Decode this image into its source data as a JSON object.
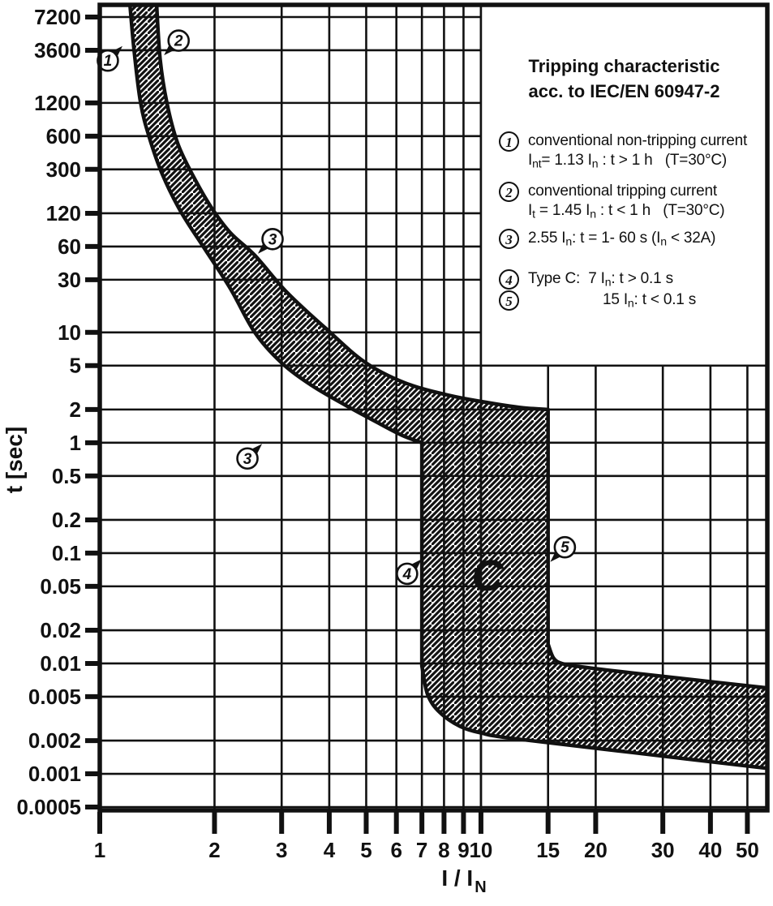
{
  "page": {
    "background": "#ffffff",
    "ink_color": "#111111"
  },
  "legend": {
    "title_line1": "Tripping characteristic",
    "title_line2": "acc. to IEC/EN 60947-2",
    "items": [
      {
        "num": "1",
        "lines": [
          [
            [
              "conventional non-tripping current",
              0
            ]
          ],
          [
            [
              "I",
              0
            ],
            [
              "nt",
              1
            ],
            [
              "= 1.13 I",
              0
            ],
            [
              "n",
              1
            ],
            [
              " : t > 1 h   (T=30°C)",
              0
            ]
          ]
        ]
      },
      {
        "num": "2",
        "lines": [
          [
            [
              "conventional tripping current",
              0
            ]
          ],
          [
            [
              "I",
              0
            ],
            [
              "t",
              1
            ],
            [
              " = 1.45 I",
              0
            ],
            [
              "n",
              1
            ],
            [
              " : t < 1 h   (T=30°C)",
              0
            ]
          ]
        ]
      },
      {
        "num": "3",
        "lines": [
          [
            [
              "2.55 I",
              0
            ],
            [
              "n",
              1
            ],
            [
              ": t = 1- 60 s (I",
              0
            ],
            [
              "n",
              1
            ],
            [
              " < 32A)",
              0
            ]
          ]
        ]
      },
      {
        "num": "4",
        "lines": [
          [
            [
              "Type C:  7 I",
              0
            ],
            [
              "n",
              1
            ],
            [
              ": t > 0.1 s",
              0
            ]
          ]
        ]
      },
      {
        "num": "5",
        "indent": true,
        "lines": [
          [
            [
              "15 I",
              0
            ],
            [
              "n",
              1
            ],
            [
              ": t < 0.1 s",
              0
            ]
          ]
        ]
      }
    ]
  },
  "chart_data": {
    "type": "area",
    "title": "Tripping characteristic acc. to IEC/EN 60947-2",
    "xlabel": "I / I_N",
    "xlabel_main": "I / I",
    "xlabel_sub": "N",
    "ylabel": "t [sec]",
    "log_x": true,
    "log_y": true,
    "grid": true,
    "legend_position": "top-right",
    "x_range": [
      1,
      56.4
    ],
    "y_range": [
      0.0005,
      7200
    ],
    "x_ticks": [
      "1",
      "2",
      "3",
      "4",
      "5",
      "6",
      "7",
      "8",
      "9",
      "10",
      "15",
      "20",
      "30",
      "40",
      "50"
    ],
    "y_ticks": [
      "7200",
      "3600",
      "1200",
      "600",
      "300",
      "120",
      "60",
      "30",
      "10",
      "5",
      "2",
      "1",
      "0.5",
      "0.2",
      "0.1",
      "0.05",
      "0.02",
      "0.01",
      "0.005",
      "0.002",
      "0.001",
      "0.0005"
    ],
    "band": {
      "name": "tripping-tolerance-band",
      "lower_boundary_non_tripping_multiple": 1.13,
      "upper_boundary_tripping_multiple": 1.45,
      "instantaneous_trip_min_multiple": 7,
      "instantaneous_trip_max_multiple": 15,
      "outline": [
        {
          "smooth": true,
          "pts": [
            [
              1.2,
              9300
            ],
            [
              1.23,
              3600
            ],
            [
              1.28,
              1200
            ],
            [
              1.35,
              580
            ],
            [
              1.46,
              270
            ],
            [
              1.63,
              125
            ],
            [
              1.88,
              58
            ],
            [
              2.2,
              25
            ],
            [
              2.55,
              10
            ],
            [
              3.0,
              5.3
            ],
            [
              3.6,
              3.3
            ],
            [
              4.4,
              2.2
            ],
            [
              5.3,
              1.55
            ],
            [
              6.2,
              1.17
            ],
            [
              7,
              1
            ]
          ]
        },
        {
          "smooth": false,
          "pts": [
            [
              7,
              1
            ],
            [
              7,
              0.0095
            ]
          ]
        },
        {
          "smooth": true,
          "pts": [
            [
              7,
              0.0095
            ],
            [
              7.25,
              0.0052
            ],
            [
              7.8,
              0.0036
            ],
            [
              8.8,
              0.0027
            ],
            [
              10,
              0.00235
            ],
            [
              12,
              0.0021
            ],
            [
              25,
              0.00156
            ],
            [
              56.4,
              0.00112
            ]
          ]
        },
        {
          "smooth": false,
          "pts": [
            [
              56.4,
              0.00112
            ],
            [
              56.4,
              0.006
            ]
          ]
        },
        {
          "smooth": true,
          "pts": [
            [
              56.4,
              0.006
            ],
            [
              25,
              0.0082
            ],
            [
              18,
              0.0094
            ],
            [
              16.3,
              0.01
            ],
            [
              15.5,
              0.0112
            ],
            [
              15,
              0.015
            ]
          ]
        },
        {
          "smooth": false,
          "pts": [
            [
              15,
              0.015
            ],
            [
              15,
              2
            ]
          ]
        },
        {
          "smooth": true,
          "pts": [
            [
              15,
              2
            ],
            [
              12.8,
              2.08
            ],
            [
              10.5,
              2.3
            ],
            [
              8.2,
              2.7
            ],
            [
              6.3,
              3.5
            ],
            [
              4.95,
              5.4
            ],
            [
              3.9,
              11
            ],
            [
              3.1,
              23
            ],
            [
              2.55,
              50
            ],
            [
              2.2,
              80
            ],
            [
              1.95,
              140
            ],
            [
              1.74,
              280
            ],
            [
              1.6,
              520
            ],
            [
              1.5,
              1200
            ],
            [
              1.44,
              3000
            ],
            [
              1.41,
              9300
            ]
          ]
        }
      ]
    },
    "annotations": [
      {
        "label": "1",
        "x": 1.05,
        "t": 2900,
        "dir": "ne"
      },
      {
        "label": "2",
        "x": 1.61,
        "t": 4400,
        "dir": "sw"
      },
      {
        "label": "3",
        "x": 2.84,
        "t": 70,
        "dir": "sw"
      },
      {
        "label": "3",
        "x": 2.44,
        "t": 0.72,
        "dir": "ne"
      },
      {
        "label": "4",
        "x": 6.4,
        "t": 0.065,
        "dir": "ne"
      },
      {
        "label": "5",
        "x": 16.6,
        "t": 0.113,
        "dir": "sw"
      }
    ],
    "region_label": {
      "text": "C",
      "x": 10.4,
      "t": 0.063
    }
  }
}
